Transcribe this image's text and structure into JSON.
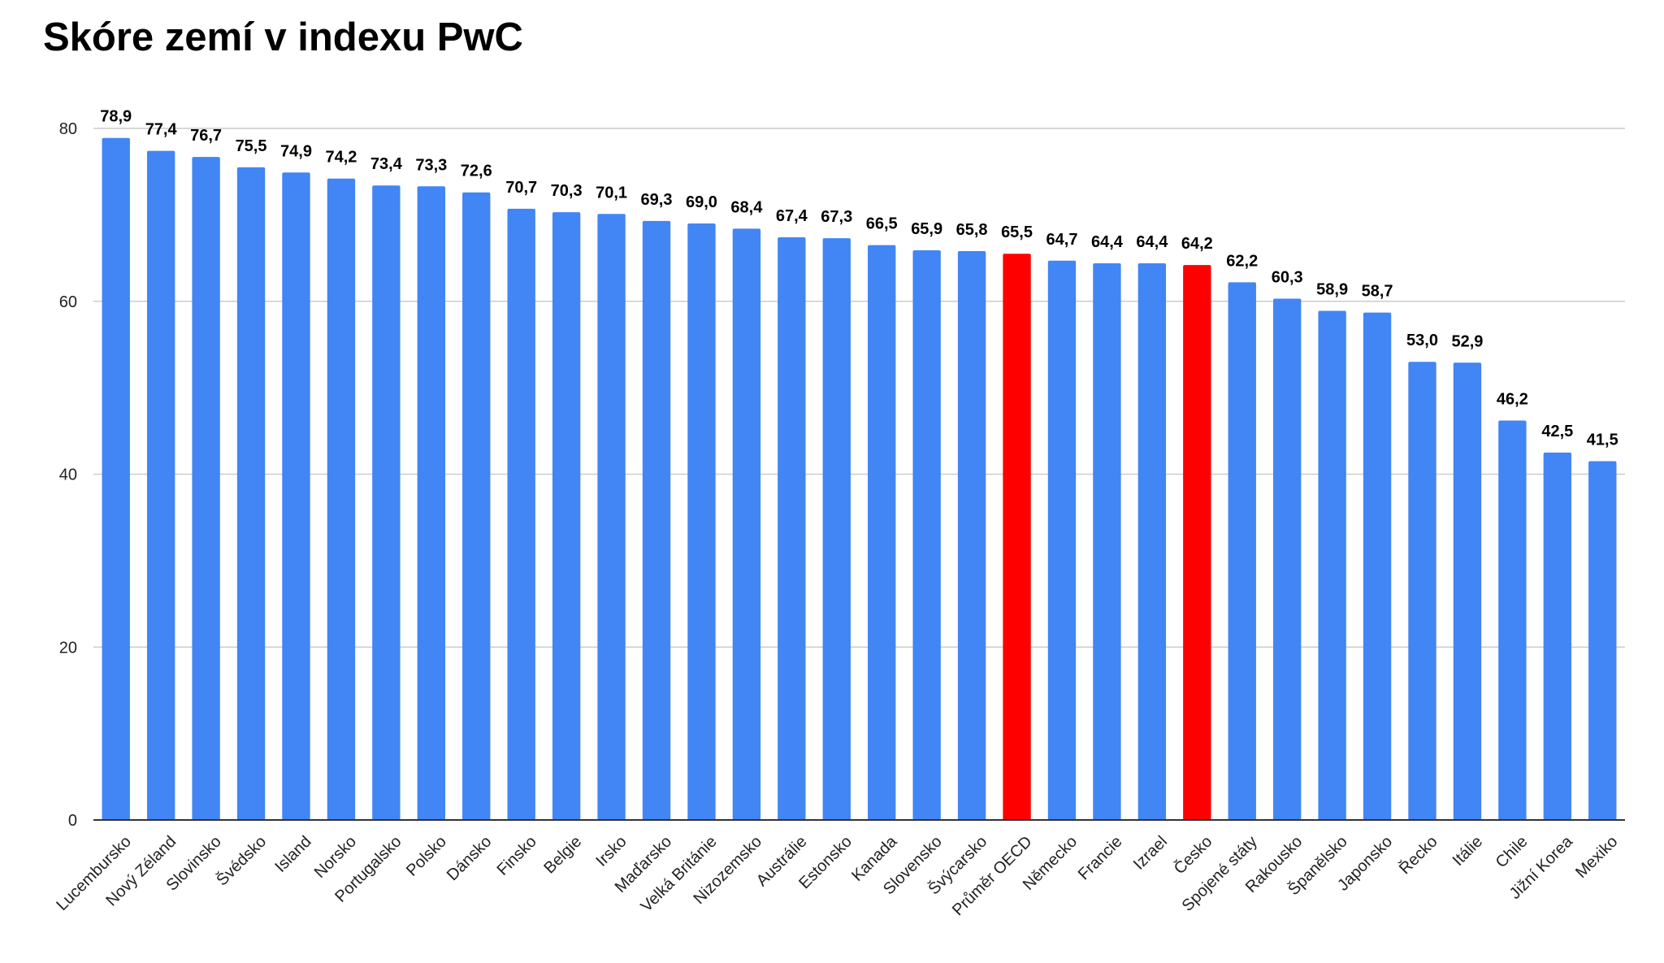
{
  "chart_data": {
    "type": "bar",
    "title": "Skóre zemí v indexu PwC",
    "xlabel": "",
    "ylabel": "",
    "ylim": [
      0,
      80
    ],
    "yticks": [
      0,
      20,
      40,
      60,
      80
    ],
    "grid": true,
    "legend": "none",
    "categories": [
      "Lucembursko",
      "Nový Zéland",
      "Slovinsko",
      "Švédsko",
      "Island",
      "Norsko",
      "Portugalsko",
      "Polsko",
      "Dánsko",
      "Finsko",
      "Belgie",
      "Irsko",
      "Maďarsko",
      "Velká Británie",
      "Nizozemsko",
      "Austrálie",
      "Estonsko",
      "Kanada",
      "Slovensko",
      "Švýcarsko",
      "Průměr OECD",
      "Německo",
      "Francie",
      "Izrael",
      "Česko",
      "Spojené státy",
      "Rakousko",
      "Španělsko",
      "Japonsko",
      "Řecko",
      "Itálie",
      "Chile",
      "Jižní Korea",
      "Mexiko"
    ],
    "values": [
      78.9,
      77.4,
      76.7,
      75.5,
      74.9,
      74.2,
      73.4,
      73.3,
      72.6,
      70.7,
      70.3,
      70.1,
      69.3,
      69.0,
      68.4,
      67.4,
      67.3,
      66.5,
      65.9,
      65.8,
      65.5,
      64.7,
      64.4,
      64.4,
      64.2,
      62.2,
      60.3,
      58.9,
      58.7,
      53.0,
      52.9,
      46.2,
      42.5,
      41.5
    ],
    "value_labels": [
      "78,9",
      "77,4",
      "76,7",
      "75,5",
      "74,9",
      "74,2",
      "73,4",
      "73,3",
      "72,6",
      "70,7",
      "70,3",
      "70,1",
      "69,3",
      "69,0",
      "68,4",
      "67,4",
      "67,3",
      "66,5",
      "65,9",
      "65,8",
      "65,5",
      "64,7",
      "64,4",
      "64,4",
      "64,2",
      "62,2",
      "60,3",
      "58,9",
      "58,7",
      "53,0",
      "52,9",
      "46,2",
      "42,5",
      "41,5"
    ],
    "colors": {
      "default": "#4285F4",
      "highlight": "#FF0000",
      "highlight_categories": [
        "Průměr OECD",
        "Česko"
      ],
      "grid": "#CCCCCC",
      "axis": "#333333"
    }
  }
}
